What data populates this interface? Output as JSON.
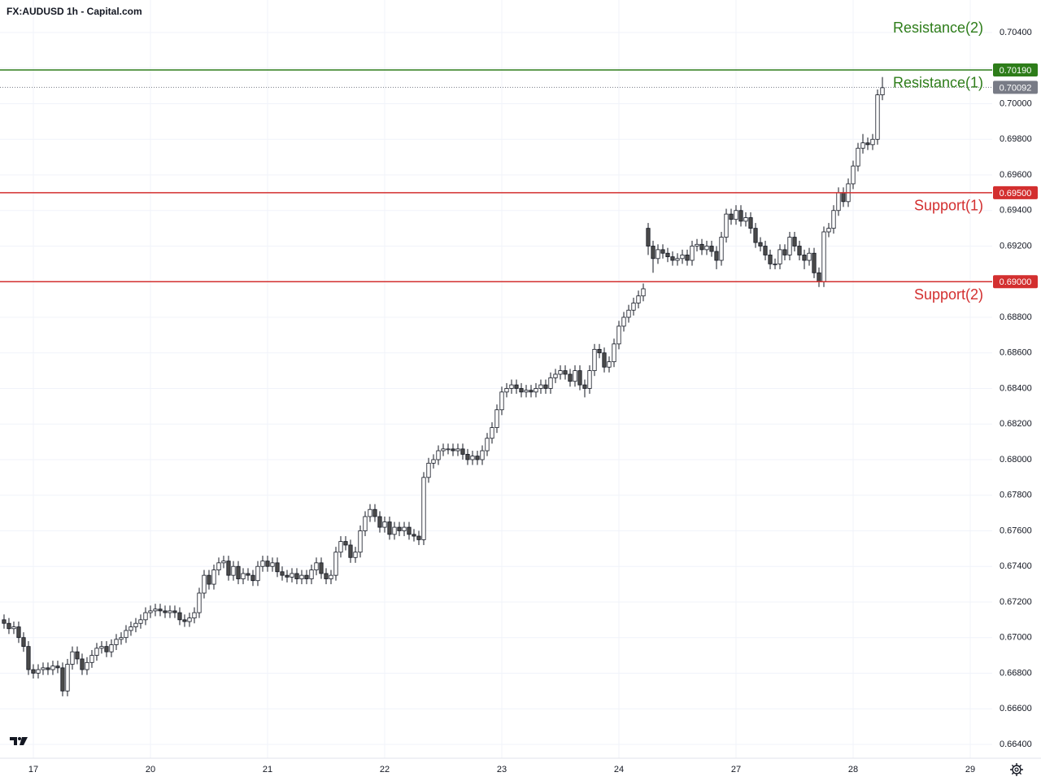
{
  "chart_data": {
    "type": "candlestick",
    "title": "FX:AUDUSD 1h - Capital.com",
    "xlim": [
      -0.83,
      202.5
    ],
    "ylim": [
      0.66322,
      0.70583
    ],
    "grid": true,
    "up_color": "#ffffff",
    "down_color": "#4a4a4a",
    "xticks": [
      {
        "value": 6,
        "label": "17"
      },
      {
        "value": 30,
        "label": "20"
      },
      {
        "value": 54,
        "label": "21"
      },
      {
        "value": 78,
        "label": "22"
      },
      {
        "value": 102,
        "label": "23"
      },
      {
        "value": 126,
        "label": "24"
      },
      {
        "value": 150,
        "label": "27"
      },
      {
        "value": 174,
        "label": "28"
      },
      {
        "value": 198,
        "label": "29"
      }
    ],
    "yticks": [
      {
        "value": 0.704,
        "label": "0.70400"
      },
      {
        "value": 0.702,
        "label": "0.70200"
      },
      {
        "value": 0.7,
        "label": "0.70000"
      },
      {
        "value": 0.698,
        "label": "0.69800"
      },
      {
        "value": 0.696,
        "label": "0.69600"
      },
      {
        "value": 0.694,
        "label": "0.69400"
      },
      {
        "value": 0.692,
        "label": "0.69200"
      },
      {
        "value": 0.69,
        "label": "0.69000"
      },
      {
        "value": 0.688,
        "label": "0.68800"
      },
      {
        "value": 0.686,
        "label": "0.68600"
      },
      {
        "value": 0.684,
        "label": "0.68400"
      },
      {
        "value": 0.682,
        "label": "0.68200"
      },
      {
        "value": 0.68,
        "label": "0.68000"
      },
      {
        "value": 0.678,
        "label": "0.67800"
      },
      {
        "value": 0.676,
        "label": "0.67600"
      },
      {
        "value": 0.674,
        "label": "0.67400"
      },
      {
        "value": 0.672,
        "label": "0.67200"
      },
      {
        "value": 0.67,
        "label": "0.67000"
      },
      {
        "value": 0.668,
        "label": "0.66800"
      },
      {
        "value": 0.666,
        "label": "0.66600"
      },
      {
        "value": 0.664,
        "label": "0.66400"
      }
    ],
    "open": [
      0.671,
      0.6708,
      0.6705,
      0.6706,
      0.67,
      0.6695,
      0.6682,
      0.668,
      0.6682,
      0.6683,
      0.6682,
      0.6684,
      0.6683,
      0.667,
      0.6685,
      0.6692,
      0.6688,
      0.6682,
      0.6686,
      0.669,
      0.6694,
      0.6695,
      0.6692,
      0.6696,
      0.6699,
      0.67,
      0.6704,
      0.6706,
      0.6708,
      0.671,
      0.6714,
      0.6715,
      0.6716,
      0.6715,
      0.6714,
      0.6715,
      0.6714,
      0.671,
      0.6709,
      0.6711,
      0.6714,
      0.6725,
      0.6735,
      0.673,
      0.6738,
      0.6742,
      0.6743,
      0.6735,
      0.674,
      0.6733,
      0.6736,
      0.6735,
      0.6732,
      0.674,
      0.6743,
      0.674,
      0.6742,
      0.6737,
      0.6735,
      0.6734,
      0.6736,
      0.6733,
      0.6735,
      0.6733,
      0.6738,
      0.6742,
      0.6736,
      0.6733,
      0.6735,
      0.6748,
      0.6754,
      0.6752,
      0.6745,
      0.6748,
      0.676,
      0.6768,
      0.6772,
      0.6768,
      0.6762,
      0.6765,
      0.6758,
      0.6762,
      0.676,
      0.6762,
      0.6758,
      0.6757,
      0.6755,
      0.679,
      0.6798,
      0.68,
      0.6805,
      0.6806,
      0.6806,
      0.6805,
      0.6806,
      0.6803,
      0.68,
      0.6802,
      0.68,
      0.6805,
      0.6812,
      0.6818,
      0.6828,
      0.6838,
      0.684,
      0.6842,
      0.684,
      0.6838,
      0.6839,
      0.6838,
      0.684,
      0.6842,
      0.684,
      0.6846,
      0.6848,
      0.685,
      0.6848,
      0.6844,
      0.685,
      0.6842,
      0.684,
      0.685,
      0.6862,
      0.686,
      0.6852,
      0.6855,
      0.6865,
      0.6875,
      0.688,
      0.6884,
      0.6888,
      0.6892,
      0.693,
      0.692,
      0.6913,
      0.6918,
      0.6916,
      0.6914,
      0.6912,
      0.6913,
      0.6915,
      0.6912,
      0.692,
      0.6921,
      0.6918,
      0.692,
      0.6917,
      0.6912,
      0.6925,
      0.6938,
      0.6935,
      0.694,
      0.6934,
      0.6936,
      0.693,
      0.6922,
      0.692,
      0.6915,
      0.691,
      0.691,
      0.6918,
      0.6915,
      0.6925,
      0.692,
      0.6915,
      0.6912,
      0.6916,
      0.6905,
      0.69,
      0.6928,
      0.693,
      0.694,
      0.695,
      0.6945,
      0.6955,
      0.6965,
      0.6975,
      0.6978,
      0.6977,
      0.698,
      0.7005
    ],
    "high": [
      0.6713,
      0.6711,
      0.6709,
      0.6709,
      0.6703,
      0.6698,
      0.6685,
      0.6685,
      0.6686,
      0.6686,
      0.6687,
      0.6687,
      0.6686,
      0.6688,
      0.6695,
      0.6695,
      0.6691,
      0.6689,
      0.6693,
      0.6697,
      0.6698,
      0.6698,
      0.6699,
      0.6702,
      0.6703,
      0.6707,
      0.6709,
      0.6711,
      0.6713,
      0.6717,
      0.6718,
      0.6719,
      0.6719,
      0.6718,
      0.6718,
      0.6718,
      0.6717,
      0.6713,
      0.6714,
      0.6717,
      0.6728,
      0.6738,
      0.6738,
      0.6741,
      0.6745,
      0.6746,
      0.6746,
      0.6743,
      0.6743,
      0.6739,
      0.6739,
      0.6738,
      0.6743,
      0.6746,
      0.6746,
      0.6745,
      0.6745,
      0.674,
      0.6738,
      0.6739,
      0.6739,
      0.6738,
      0.6738,
      0.6741,
      0.6745,
      0.6745,
      0.6739,
      0.6738,
      0.6751,
      0.6757,
      0.6757,
      0.6755,
      0.6751,
      0.6763,
      0.6771,
      0.6775,
      0.6775,
      0.6771,
      0.6768,
      0.6768,
      0.6765,
      0.6765,
      0.6765,
      0.6765,
      0.6761,
      0.676,
      0.6793,
      0.6801,
      0.6803,
      0.6808,
      0.6809,
      0.6809,
      0.6809,
      0.6809,
      0.6809,
      0.6806,
      0.6805,
      0.6805,
      0.6808,
      0.6815,
      0.6821,
      0.6831,
      0.6841,
      0.6843,
      0.6845,
      0.6845,
      0.6843,
      0.6842,
      0.6842,
      0.6843,
      0.6845,
      0.6845,
      0.6849,
      0.6851,
      0.6853,
      0.6853,
      0.6851,
      0.6853,
      0.6853,
      0.6845,
      0.6853,
      0.6865,
      0.6865,
      0.6863,
      0.6858,
      0.6868,
      0.6878,
      0.6883,
      0.6887,
      0.6891,
      0.6895,
      0.6899,
      0.6933,
      0.6923,
      0.6921,
      0.6921,
      0.6919,
      0.6917,
      0.6916,
      0.6918,
      0.6918,
      0.6923,
      0.6924,
      0.6924,
      0.6923,
      0.6923,
      0.692,
      0.6928,
      0.6941,
      0.6941,
      0.6943,
      0.6943,
      0.6939,
      0.6939,
      0.6933,
      0.6925,
      0.6923,
      0.6918,
      0.6913,
      0.6921,
      0.6921,
      0.6928,
      0.6928,
      0.6923,
      0.6918,
      0.6919,
      0.6919,
      0.6908,
      0.6931,
      0.6933,
      0.6943,
      0.6953,
      0.6953,
      0.6958,
      0.6968,
      0.6978,
      0.6983,
      0.6981,
      0.6983,
      0.7008,
      0.7015
    ],
    "low": [
      0.6705,
      0.6702,
      0.6702,
      0.6697,
      0.6692,
      0.6679,
      0.6677,
      0.6677,
      0.6679,
      0.6679,
      0.6679,
      0.668,
      0.6667,
      0.6667,
      0.6682,
      0.6685,
      0.6679,
      0.6679,
      0.6683,
      0.6687,
      0.6691,
      0.6689,
      0.6689,
      0.6693,
      0.6696,
      0.6697,
      0.6701,
      0.6703,
      0.6705,
      0.6707,
      0.6711,
      0.6712,
      0.6712,
      0.6711,
      0.6711,
      0.6711,
      0.6707,
      0.6706,
      0.6706,
      0.6708,
      0.6711,
      0.6722,
      0.6727,
      0.6727,
      0.6735,
      0.6739,
      0.6732,
      0.6732,
      0.673,
      0.673,
      0.6732,
      0.6729,
      0.6729,
      0.6737,
      0.6737,
      0.6737,
      0.6734,
      0.6732,
      0.6731,
      0.6731,
      0.673,
      0.673,
      0.673,
      0.673,
      0.6735,
      0.6733,
      0.673,
      0.673,
      0.6732,
      0.6745,
      0.6749,
      0.6742,
      0.6742,
      0.6745,
      0.6757,
      0.6765,
      0.6765,
      0.6759,
      0.6759,
      0.6755,
      0.6755,
      0.6757,
      0.6757,
      0.6755,
      0.6754,
      0.6752,
      0.6752,
      0.6787,
      0.6795,
      0.6797,
      0.6802,
      0.6803,
      0.6802,
      0.6802,
      0.68,
      0.6797,
      0.6797,
      0.6797,
      0.6797,
      0.6802,
      0.6809,
      0.6815,
      0.6825,
      0.6835,
      0.6837,
      0.6837,
      0.6835,
      0.6835,
      0.6835,
      0.6835,
      0.6837,
      0.6837,
      0.6837,
      0.6843,
      0.6845,
      0.6845,
      0.6841,
      0.6841,
      0.6839,
      0.6835,
      0.6837,
      0.6847,
      0.6857,
      0.6849,
      0.6849,
      0.6852,
      0.6862,
      0.6872,
      0.6877,
      0.6881,
      0.6885,
      0.6889,
      0.6915,
      0.6905,
      0.691,
      0.6913,
      0.6911,
      0.6909,
      0.6909,
      0.691,
      0.6909,
      0.6909,
      0.6917,
      0.6915,
      0.6915,
      0.6914,
      0.6907,
      0.6909,
      0.6922,
      0.6932,
      0.6932,
      0.6931,
      0.6931,
      0.6927,
      0.6919,
      0.6917,
      0.6912,
      0.6907,
      0.6907,
      0.6907,
      0.6912,
      0.6912,
      0.6917,
      0.6912,
      0.6907,
      0.6909,
      0.6902,
      0.6897,
      0.6897,
      0.6925,
      0.6927,
      0.6937,
      0.6942,
      0.6942,
      0.6952,
      0.6962,
      0.6972,
      0.6974,
      0.6974,
      0.6977,
      0.7002
    ],
    "close": [
      0.6708,
      0.6705,
      0.6706,
      0.67,
      0.6695,
      0.6682,
      0.668,
      0.6682,
      0.6683,
      0.6682,
      0.6684,
      0.6683,
      0.667,
      0.6685,
      0.6692,
      0.6688,
      0.6682,
      0.6686,
      0.669,
      0.6694,
      0.6695,
      0.6692,
      0.6696,
      0.6699,
      0.67,
      0.6704,
      0.6706,
      0.6708,
      0.671,
      0.6714,
      0.6715,
      0.6716,
      0.6715,
      0.6714,
      0.6715,
      0.6714,
      0.671,
      0.6709,
      0.6711,
      0.6714,
      0.6725,
      0.6735,
      0.673,
      0.6738,
      0.6742,
      0.6743,
      0.6735,
      0.674,
      0.6733,
      0.6736,
      0.6735,
      0.6732,
      0.674,
      0.6743,
      0.674,
      0.6742,
      0.6737,
      0.6735,
      0.6734,
      0.6736,
      0.6733,
      0.6735,
      0.6733,
      0.6738,
      0.6742,
      0.6736,
      0.6733,
      0.6735,
      0.6748,
      0.6754,
      0.6752,
      0.6745,
      0.6748,
      0.676,
      0.6768,
      0.6772,
      0.6768,
      0.6762,
      0.6765,
      0.6758,
      0.6762,
      0.676,
      0.6762,
      0.6758,
      0.6757,
      0.6755,
      0.679,
      0.6798,
      0.68,
      0.6805,
      0.6806,
      0.6806,
      0.6805,
      0.6806,
      0.6803,
      0.68,
      0.6802,
      0.68,
      0.6805,
      0.6812,
      0.6818,
      0.6828,
      0.6838,
      0.684,
      0.6842,
      0.684,
      0.6838,
      0.6839,
      0.6838,
      0.684,
      0.6842,
      0.684,
      0.6846,
      0.6848,
      0.685,
      0.6848,
      0.6844,
      0.685,
      0.6842,
      0.684,
      0.685,
      0.6862,
      0.686,
      0.6852,
      0.6855,
      0.6865,
      0.6875,
      0.688,
      0.6884,
      0.6888,
      0.6892,
      0.6896,
      0.692,
      0.6913,
      0.6918,
      0.6916,
      0.6914,
      0.6912,
      0.6913,
      0.6915,
      0.6912,
      0.692,
      0.6921,
      0.6918,
      0.692,
      0.6917,
      0.6912,
      0.6925,
      0.6938,
      0.6935,
      0.694,
      0.6934,
      0.6936,
      0.693,
      0.6922,
      0.692,
      0.6915,
      0.691,
      0.691,
      0.6918,
      0.6915,
      0.6925,
      0.692,
      0.6915,
      0.6912,
      0.6916,
      0.6905,
      0.69,
      0.6928,
      0.693,
      0.694,
      0.695,
      0.6945,
      0.6955,
      0.6965,
      0.6975,
      0.6978,
      0.6977,
      0.698,
      0.7005,
      0.7009
    ],
    "levels": [
      {
        "name": "Resistance(2)",
        "color": "#2e7d1a"
      },
      {
        "name": "Resistance(1)",
        "value": 0.7019,
        "value_label": "0.70190",
        "color": "#2e7d1a"
      },
      {
        "name": "Support(1)",
        "value": 0.695,
        "value_label": "0.69500",
        "color": "#d32f2f"
      },
      {
        "name": "Support(2)",
        "value": 0.69,
        "value_label": "0.69000",
        "color": "#d32f2f"
      }
    ],
    "last_price": 0.70092,
    "last_price_label": "0.70092",
    "last_price_color": "#787b86"
  }
}
